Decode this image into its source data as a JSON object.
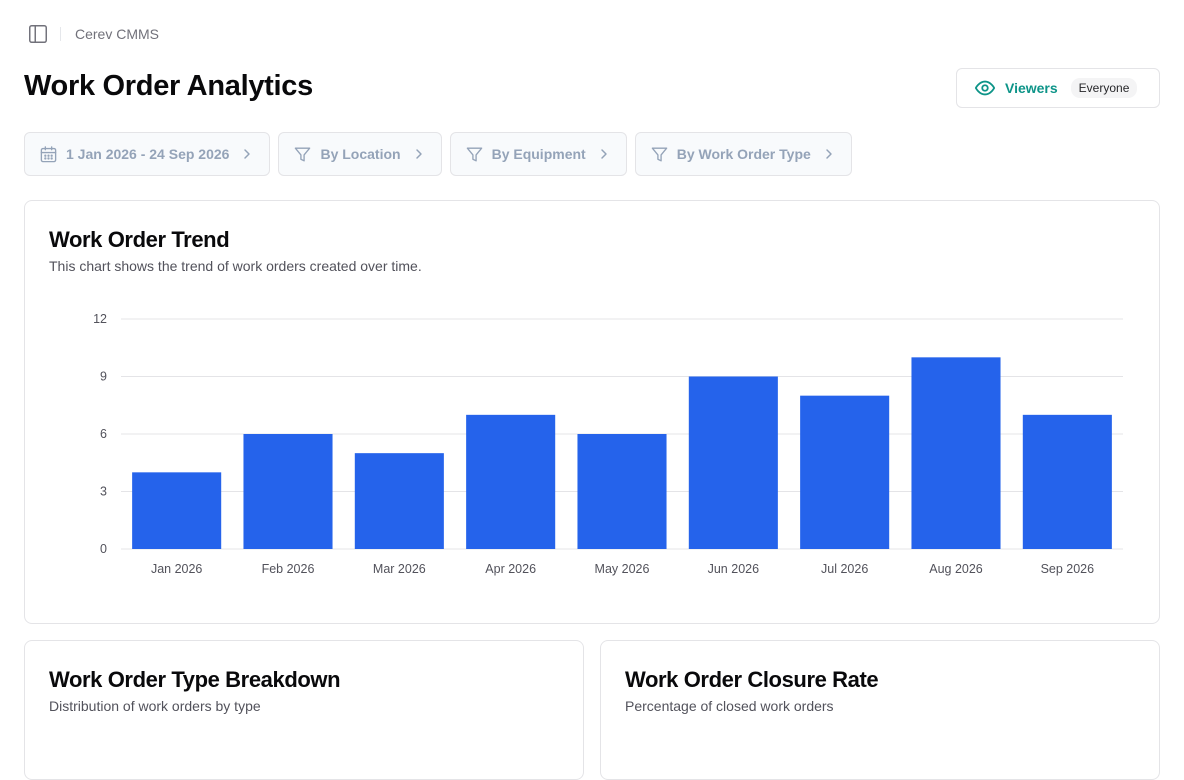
{
  "app": {
    "name": "Cerev CMMS"
  },
  "page": {
    "title": "Work Order Analytics"
  },
  "viewers": {
    "label": "Viewers",
    "badge": "Everyone",
    "accent": "#0d9488"
  },
  "filters": {
    "date_range": "1 Jan 2026 - 24 Sep 2026",
    "location": "By Location",
    "equipment": "By Equipment",
    "work_order_type": "By Work Order Type"
  },
  "trend": {
    "title": "Work Order Trend",
    "subtitle": "This chart shows the trend of work orders created over time."
  },
  "type_breakdown": {
    "title": "Work Order Type Breakdown",
    "subtitle": "Distribution of work orders by type"
  },
  "closure_rate": {
    "title": "Work Order Closure Rate",
    "subtitle": "Percentage of closed work orders"
  },
  "chart_data": {
    "type": "bar",
    "categories": [
      "Jan 2026",
      "Feb 2026",
      "Mar 2026",
      "Apr 2026",
      "May 2026",
      "Jun 2026",
      "Jul 2026",
      "Aug 2026",
      "Sep 2026"
    ],
    "values": [
      4,
      6,
      5,
      7,
      6,
      9,
      8,
      10,
      7
    ],
    "title": "Work Order Trend",
    "xlabel": "",
    "ylabel": "",
    "ylim": [
      0,
      12
    ],
    "yticks": [
      0,
      3,
      6,
      9,
      12
    ],
    "grid": true,
    "bar_color": "#2563eb"
  }
}
